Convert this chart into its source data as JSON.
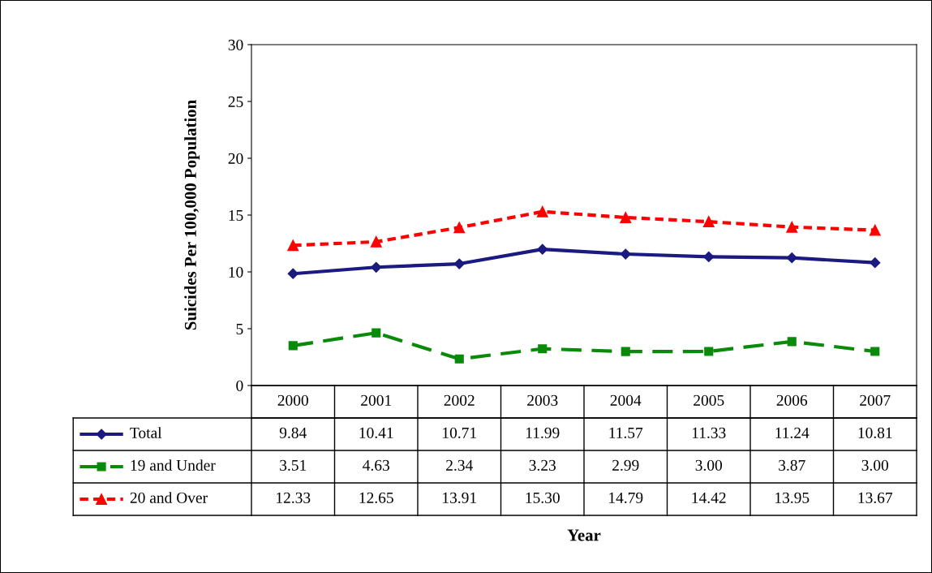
{
  "chart_data": {
    "type": "line",
    "annotations": [
      "Year"
    ],
    "ylabel": "Suicides Per 100,000 Population",
    "categories": [
      "2000",
      "2001",
      "2002",
      "2003",
      "2004",
      "2005",
      "2006",
      "2007"
    ],
    "ylim": [
      0,
      30
    ],
    "yticks": [
      0,
      5,
      10,
      15,
      20,
      25,
      30
    ],
    "grid": false,
    "legend": "bottom",
    "series": [
      {
        "name": "Total",
        "color": "#1a1a80",
        "marker": "diamond",
        "line_style": "solid",
        "values": [
          9.84,
          10.41,
          10.71,
          11.99,
          11.57,
          11.33,
          11.24,
          10.81
        ],
        "value_labels": [
          "9.84",
          "10.41",
          "10.71",
          "11.99",
          "11.57",
          "11.33",
          "11.24",
          "10.81"
        ]
      },
      {
        "name": "19 and Under",
        "color": "#0a8a0a",
        "marker": "square",
        "line_style": "dashed",
        "values": [
          3.51,
          4.63,
          2.34,
          3.23,
          2.99,
          3.0,
          3.87,
          3.0
        ],
        "value_labels": [
          "3.51",
          "4.63",
          "2.34",
          "3.23",
          "2.99",
          "3.00",
          "3.87",
          "3.00"
        ]
      },
      {
        "name": "20 and Over",
        "color": "#ff0000",
        "marker": "triangle",
        "line_style": "dotted",
        "values": [
          12.33,
          12.65,
          13.91,
          15.3,
          14.79,
          14.42,
          13.95,
          13.67
        ],
        "value_labels": [
          "12.33",
          "12.65",
          "13.91",
          "15.30",
          "14.79",
          "14.42",
          "13.95",
          "13.67"
        ]
      }
    ]
  }
}
